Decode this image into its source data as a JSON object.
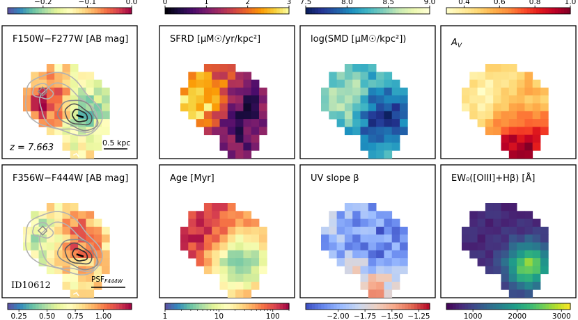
{
  "chart_data": {
    "type": "heatmap",
    "galaxy": {
      "id": "ID10612",
      "redshift": "z = 7.663",
      "scalebar": "0.5 kpc",
      "psf": "PSF",
      "psf_sub": "F444W"
    },
    "panels": [
      {
        "id": "f150w-f277w",
        "title": "F150W−F277W [AB mag]",
        "colorbar": "top",
        "cmap": "spectral_r",
        "vlim": [
          -0.28,
          0.0
        ],
        "ticks": [
          "−0.2",
          "−0.1",
          "0.0"
        ],
        "tick_values": [
          -0.2,
          -0.1,
          0.0
        ],
        "contours": true
      },
      {
        "id": "sfrd",
        "title": "SFRD [μM☉/yr/kpc²]",
        "colorbar": "top",
        "cmap": "inferno",
        "vlim": [
          0,
          3
        ],
        "ticks": [
          "0",
          "1",
          "2",
          "3"
        ],
        "tick_values": [
          0,
          1,
          2,
          3
        ],
        "contours": false
      },
      {
        "id": "smd",
        "title": "log(SMD [μM☉/kpc²])",
        "colorbar": "top",
        "cmap": "ylgnbu_r",
        "vlim": [
          7.5,
          9.0
        ],
        "ticks": [
          "7.5",
          "8.0",
          "8.5",
          "9.0"
        ],
        "tick_values": [
          7.5,
          8.0,
          8.5,
          9.0
        ],
        "contours": false
      },
      {
        "id": "av",
        "title": "A_V",
        "colorbar": "top",
        "cmap": "ylorrd",
        "vlim": [
          0.3,
          1.0
        ],
        "ticks": [
          "0.4",
          "0.6",
          "0.8",
          "1.0"
        ],
        "tick_values": [
          0.4,
          0.6,
          0.8,
          1.0
        ],
        "contours": false
      },
      {
        "id": "f356w-f444w",
        "title": "F356W−F444W [AB mag]",
        "colorbar": "bottom",
        "cmap": "spectral_r",
        "vlim": [
          0.15,
          1.25
        ],
        "ticks": [
          "0.25",
          "0.50",
          "0.75",
          "1.00"
        ],
        "tick_values": [
          0.25,
          0.5,
          0.75,
          1.0
        ],
        "contours": true
      },
      {
        "id": "age",
        "title": "Age [Myr]",
        "colorbar": "bottom",
        "cmap": "spectral_r",
        "log": true,
        "vlim": [
          1,
          200
        ],
        "ticks": [
          "1",
          "10",
          "100"
        ],
        "tick_values": [
          1,
          10,
          100
        ],
        "contours": false
      },
      {
        "id": "uv-slope",
        "title": "UV slope β",
        "colorbar": "bottom",
        "cmap": "coolwarm",
        "vlim": [
          -2.3,
          -1.15
        ],
        "ticks": [
          "−2.00",
          "−1.75",
          "−1.50",
          "−1.25"
        ],
        "tick_values": [
          -2.0,
          -1.75,
          -1.5,
          -1.25
        ],
        "contours": false
      },
      {
        "id": "ew",
        "title": "EW₀([OIII]+Hβ) [Å]",
        "colorbar": "bottom",
        "cmap": "viridis",
        "vlim": [
          400,
          3200
        ],
        "ticks": [
          "1000",
          "2000",
          "3000"
        ],
        "tick_values": [
          1000,
          2000,
          3000
        ],
        "contours": false
      }
    ]
  }
}
